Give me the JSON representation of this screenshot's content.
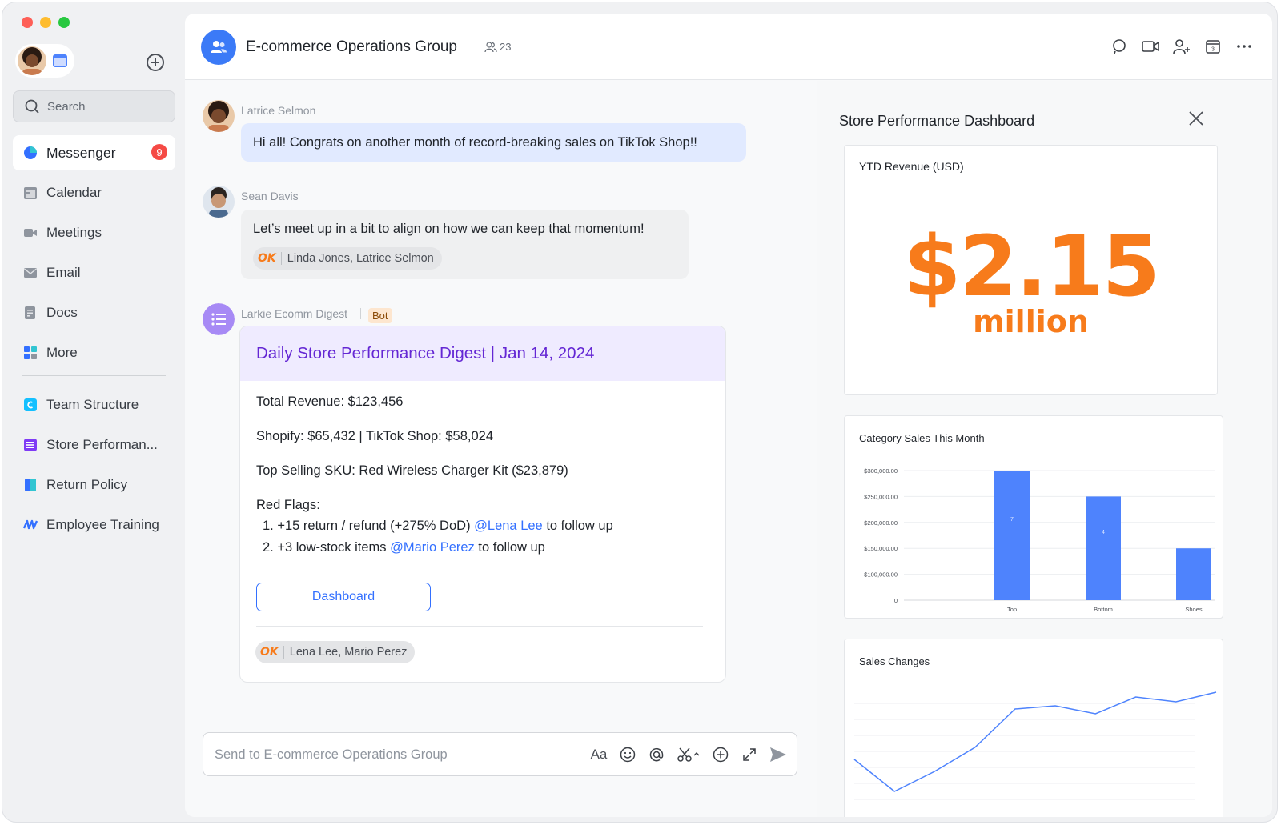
{
  "sidebar": {
    "search_label": "Search",
    "items": [
      {
        "label": "Messenger",
        "badge": "9"
      },
      {
        "label": "Calendar"
      },
      {
        "label": "Meetings"
      },
      {
        "label": "Email"
      },
      {
        "label": "Docs"
      },
      {
        "label": "More"
      }
    ],
    "pinned": [
      {
        "label": "Team Structure"
      },
      {
        "label": "Store Performan..."
      },
      {
        "label": "Return Policy"
      },
      {
        "label": "Employee Training"
      }
    ]
  },
  "header": {
    "title": "E-commerce Operations Group",
    "member_count": "23"
  },
  "messages": [
    {
      "sender": "Latrice Selmon",
      "text": "Hi all! Congrats on another month of record-breaking sales on TikTok Shop!!"
    },
    {
      "sender": "Sean Davis",
      "text": "Let’s meet up in a bit to align on how we can keep that momentum!",
      "reaction_label": "OK",
      "reaction_users": "Linda Jones, Latrice Selmon"
    }
  ],
  "bot": {
    "sender": "Larkie Ecomm Digest",
    "tag": "Bot",
    "card_title": "Daily Store Performance Digest | Jan 14, 2024",
    "total_revenue": "Total Revenue: $123,456",
    "channels": "Shopify: $65,432 | TikTok Shop: $58,024",
    "top_sku": "Top Selling SKU: Red Wireless Charger Kit ($23,879)",
    "red_flags_label": "Red Flags:",
    "flag1_text": "1. +15 return / refund (+275% DoD) ",
    "flag1_mention": "@Lena Lee",
    "flag1_suffix": " to follow up",
    "flag2_text": "2. +3 low-stock items ",
    "flag2_mention": "@Mario Perez",
    "flag2_suffix": " to follow up",
    "button_label": "Dashboard",
    "reaction_label": "OK",
    "reaction_users": "Lena Lee, Mario Perez"
  },
  "composer": {
    "placeholder": "Send to E-commerce Operations Group",
    "font_tool": "Aa"
  },
  "panel": {
    "title": "Store Performance Dashboard",
    "ytd_title": "YTD Revenue (USD)",
    "ytd_value": "$2.15",
    "ytd_unit": "million",
    "category_title": "Category Sales This Month",
    "sales_changes_title": "Sales Changes"
  },
  "colors": {
    "accent": "#3370ff",
    "bar": "#4e83fd",
    "highlight": "#f77b1b",
    "bot_title": "#6427d4",
    "badge": "#f54a45"
  },
  "chart_data": [
    {
      "type": "bar",
      "title": "Category Sales This Month",
      "categories": [
        "Top",
        "Bottom",
        "Shoes"
      ],
      "values": [
        300000,
        250000,
        150000
      ],
      "bar_labels": [
        "7",
        "4",
        ""
      ],
      "y_ticks": [
        "0",
        "$100,000.00",
        "$150,000.00",
        "$200,000.00",
        "$250,000.00",
        "$300,000.00"
      ],
      "ylim": [
        50000,
        310000
      ],
      "grid": true
    },
    {
      "type": "line",
      "title": "Sales Changes",
      "x": [
        0,
        1,
        2,
        3,
        4,
        5,
        6,
        7,
        8,
        9
      ],
      "values": [
        50,
        10,
        35,
        65,
        113,
        117,
        107,
        128,
        122,
        134
      ],
      "ylim": [
        0,
        140
      ],
      "grid": true
    }
  ]
}
